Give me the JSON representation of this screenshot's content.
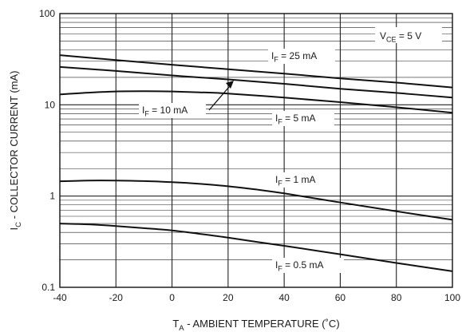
{
  "chart_data": {
    "type": "line",
    "title": "",
    "xlabel": {
      "main": "T",
      "sub": "A",
      "rest": " - AMBIENT TEMPERATURE (˚C)"
    },
    "ylabel": {
      "main": "I",
      "sub": "C",
      "rest": " - COLLECTOR CURRENT (mA)"
    },
    "x_ticks": [
      -40,
      -20,
      0,
      20,
      40,
      60,
      80,
      100
    ],
    "x_tick_labels": [
      "-40",
      "-20",
      "0",
      "20",
      "40",
      "60",
      "80",
      "100"
    ],
    "y_ticks": [
      0.1,
      1,
      10,
      100
    ],
    "y_tick_labels": [
      "0.1",
      "1",
      "10",
      "100"
    ],
    "xlim": [
      -40,
      100
    ],
    "ylim": [
      0.1,
      100
    ],
    "y_scale": "log",
    "grid": true,
    "annotations": {
      "condition": {
        "main": "V",
        "sub": "CE",
        "rest": " = 5 V"
      }
    },
    "series": [
      {
        "name": "IF = 25 mA",
        "label": {
          "main": "I",
          "sub": "F",
          "rest": " = 25 mA"
        },
        "x": [
          -40,
          -20,
          0,
          20,
          40,
          60,
          80,
          100
        ],
        "y": [
          35,
          31,
          27.5,
          24.5,
          22,
          19.5,
          17.5,
          15.5
        ]
      },
      {
        "name": "IF = 10 mA",
        "label": {
          "main": "I",
          "sub": "F",
          "rest": " = 10 mA"
        },
        "x": [
          -40,
          -20,
          0,
          20,
          40,
          60,
          80,
          100
        ],
        "y": [
          26,
          23.5,
          21,
          19,
          17,
          15,
          13.5,
          12
        ]
      },
      {
        "name": "IF = 5 mA",
        "label": {
          "main": "I",
          "sub": "F",
          "rest": " = 5 mA"
        },
        "x": [
          -40,
          -30,
          -20,
          -10,
          0,
          10,
          20,
          40,
          60,
          80,
          100
        ],
        "y": [
          13,
          13.6,
          14,
          14.1,
          14,
          13.7,
          13.3,
          12,
          10.7,
          9.4,
          8.2
        ]
      },
      {
        "name": "IF = 1 mA",
        "label": {
          "main": "I",
          "sub": "F",
          "rest": " = 1 mA"
        },
        "x": [
          -40,
          -30,
          -20,
          -10,
          0,
          10,
          20,
          30,
          40,
          60,
          80,
          100
        ],
        "y": [
          1.45,
          1.48,
          1.48,
          1.46,
          1.42,
          1.36,
          1.28,
          1.18,
          1.07,
          0.85,
          0.68,
          0.55
        ]
      },
      {
        "name": "IF = 0.5 mA",
        "label": {
          "main": "I",
          "sub": "F",
          "rest": " = 0.5 mA"
        },
        "x": [
          -40,
          -30,
          -20,
          -10,
          0,
          10,
          20,
          30,
          40,
          60,
          80,
          100
        ],
        "y": [
          0.5,
          0.49,
          0.47,
          0.445,
          0.42,
          0.385,
          0.35,
          0.315,
          0.285,
          0.23,
          0.185,
          0.15
        ]
      }
    ]
  }
}
